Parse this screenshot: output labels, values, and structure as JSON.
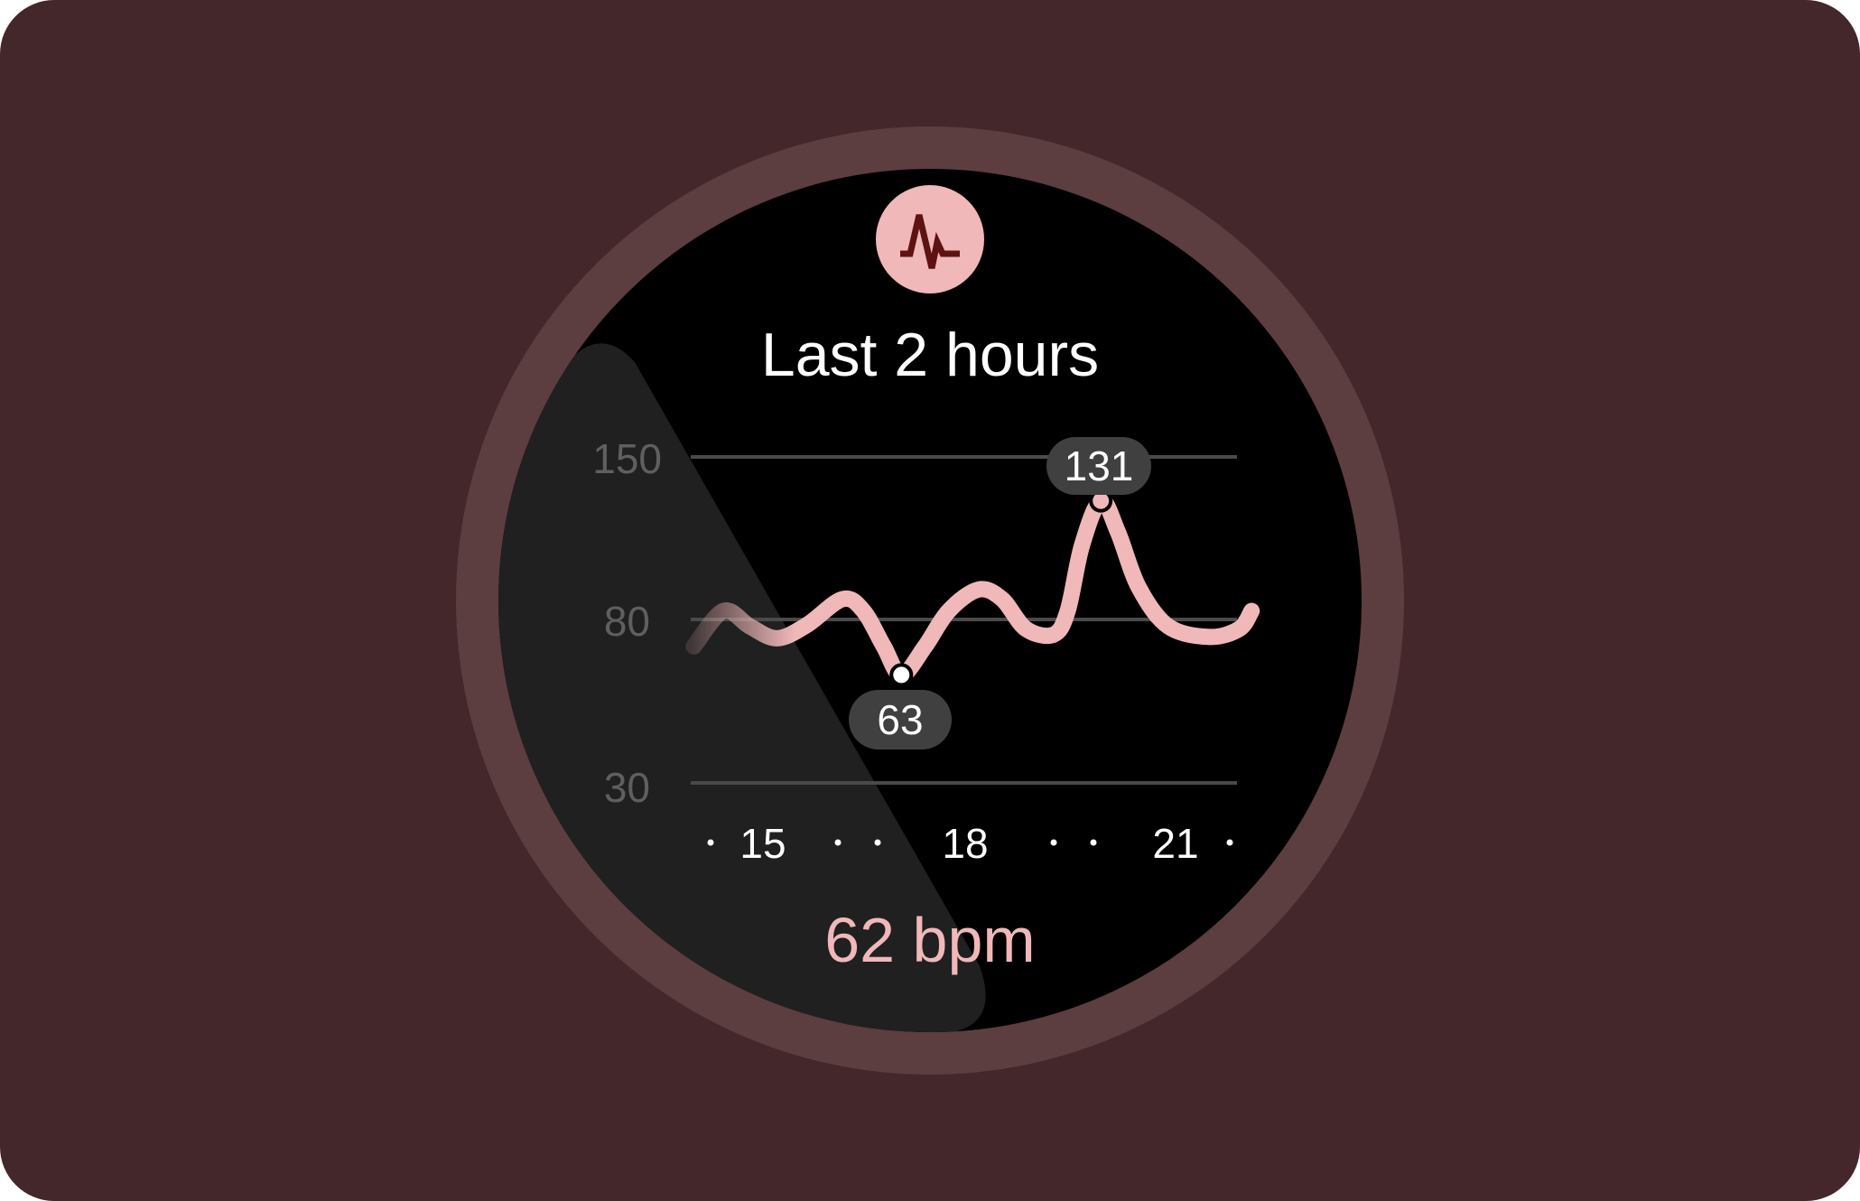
{
  "colors": {
    "background": "#43272a",
    "ring": "#5c3d40",
    "screen": "#000000",
    "accent": "#f0b8b8",
    "icon_glyph": "#5e1212",
    "badge": "#404040",
    "grid": "#4a4a4a",
    "swipe_overlay": "#202020"
  },
  "header": {
    "icon": "heart-rate-pulse-icon",
    "title": "Last 2 hours"
  },
  "footer": {
    "current_value": "62 bpm"
  },
  "chart_data": {
    "type": "line",
    "title": "",
    "xlabel": "",
    "ylabel": "",
    "y_ticks": [
      "150",
      "80",
      "30"
    ],
    "x_ticks": [
      "15",
      "18",
      "21"
    ],
    "grid": true,
    "series": [
      {
        "x": [
          13.98,
          14.42,
          14.81,
          15.21,
          15.65,
          16.18,
          16.49,
          16.79,
          17.05,
          17.4,
          17.75,
          18.19,
          18.54,
          18.89,
          19.3,
          19.51,
          19.72,
          20.0,
          20.25,
          20.56,
          21.0,
          21.61,
          22.05,
          22.23
        ],
        "y": [
          71.7,
          83.6,
          77.8,
          74.2,
          78.2,
          88.7,
          83.6,
          71.7,
          63,
          71.7,
          83.6,
          92.8,
          88.7,
          77.1,
          75.3,
          83.6,
          111.7,
          131,
          117.8,
          93.8,
          77.8,
          74.6,
          77.1,
          83.6
        ]
      }
    ],
    "annotations": [
      {
        "label": "131",
        "x": 20.0,
        "y": 131,
        "kind": "max"
      },
      {
        "label": "63",
        "x": 17.05,
        "y": 63,
        "kind": "min"
      }
    ]
  }
}
